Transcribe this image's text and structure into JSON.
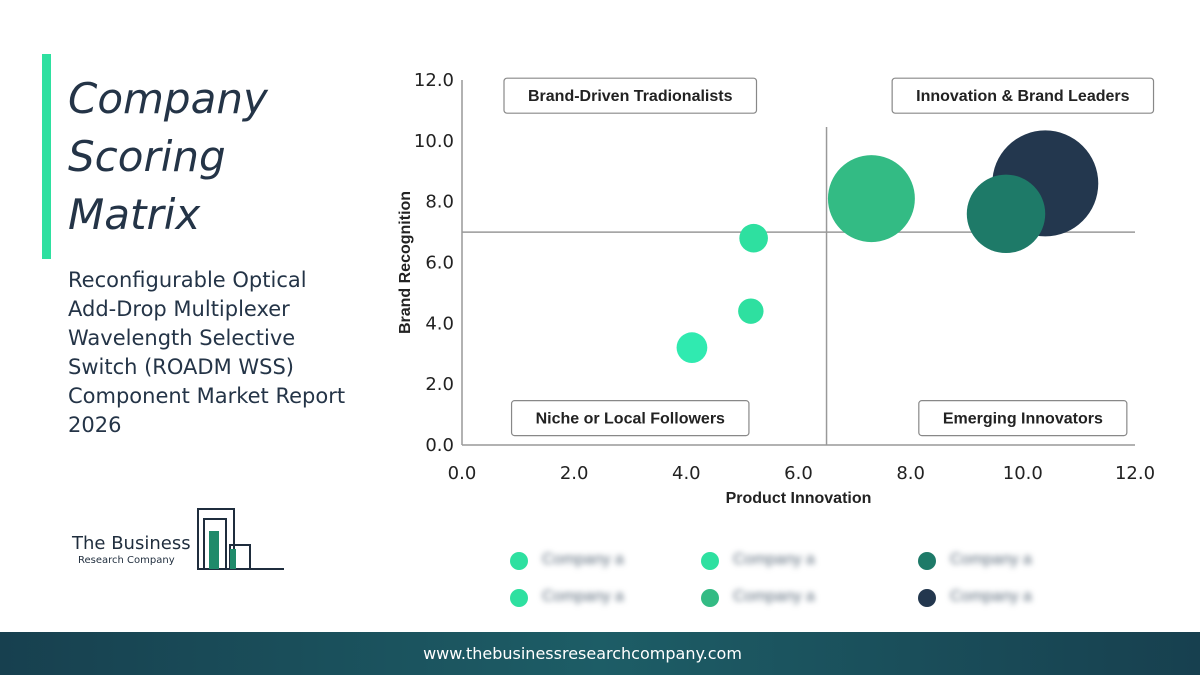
{
  "page": {
    "title": "Company Scoring Matrix",
    "subtitle": "Reconfigurable Optical Add-Drop Multiplexer Wavelength Selective Switch (ROADM WSS) Component Market Report 2026",
    "accent_color": "#2ee0a0"
  },
  "logo": {
    "name": "The Business",
    "sub": "Research Company",
    "color": "#1f8a6a",
    "icon": "bar-chart-buildings-icon"
  },
  "chart_data": {
    "type": "scatter",
    "title": "",
    "xlabel": "Product Innovation",
    "ylabel": "Brand Recognition",
    "xlim": [
      0,
      12
    ],
    "ylim": [
      0,
      12
    ],
    "x_ticks": [
      "0.0",
      "2.0",
      "4.0",
      "6.0",
      "8.0",
      "10.0",
      "12.0"
    ],
    "y_ticks": [
      "0.0",
      "2.0",
      "4.0",
      "6.0",
      "8.0",
      "10.0",
      "12.0"
    ],
    "grid": false,
    "divider": {
      "x": 6.5,
      "y": 7.0
    },
    "quadrants": [
      {
        "label": "Brand-Driven Tradionalists",
        "x": 3.0,
        "y": 11.5
      },
      {
        "label": "Innovation & Brand Leaders",
        "x": 10.0,
        "y": 11.5
      },
      {
        "label": "Niche or Local Followers",
        "x": 3.0,
        "y": 0.9
      },
      {
        "label": "Emerging Innovators",
        "x": 10.0,
        "y": 0.9
      }
    ],
    "points": [
      {
        "x": 10.4,
        "y": 8.6,
        "size": 1.0,
        "color": "#23374e"
      },
      {
        "x": 7.3,
        "y": 8.1,
        "size": 0.82,
        "color": "#33bb84"
      },
      {
        "x": 9.7,
        "y": 7.6,
        "size": 0.74,
        "color": "#1e7a68"
      },
      {
        "x": 5.2,
        "y": 6.8,
        "size": 0.27,
        "color": "#2ee0a0"
      },
      {
        "x": 5.15,
        "y": 4.4,
        "size": 0.24,
        "color": "#2ee0a0"
      },
      {
        "x": 4.1,
        "y": 3.2,
        "size": 0.29,
        "color": "#30eab0"
      }
    ],
    "legend": {
      "placement": "bottom",
      "entries": [
        {
          "name": "Company a",
          "color": "#2ee0a0"
        },
        {
          "name": "Company a",
          "color": "#2ee0a0"
        },
        {
          "name": "Company a",
          "color": "#1e7a68"
        },
        {
          "name": "Company a",
          "color": "#2ee0a0"
        },
        {
          "name": "Company a",
          "color": "#33bb84"
        },
        {
          "name": "Company a",
          "color": "#23374e"
        }
      ]
    }
  },
  "footer": {
    "url": "www.thebusinessresearchcompany.com"
  }
}
